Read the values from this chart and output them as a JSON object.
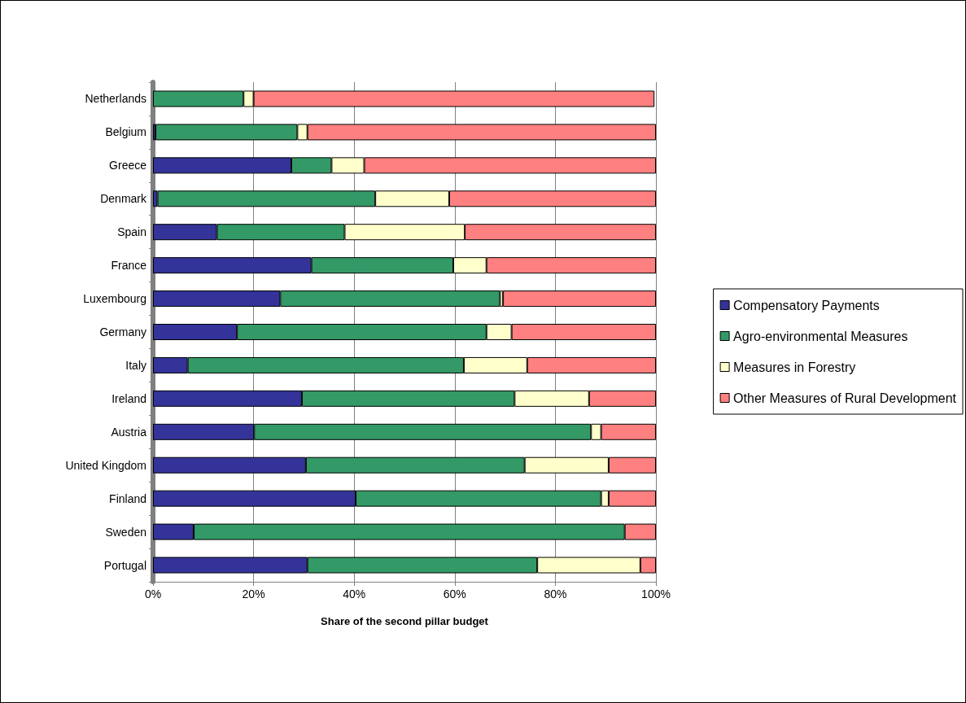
{
  "chart_data": {
    "type": "bar",
    "orientation": "horizontal",
    "stacked": true,
    "xlabel": "Share of the second pillar budget",
    "categories": [
      "Netherlands",
      "Belgium",
      "Greece",
      "Denmark",
      "Spain",
      "France",
      "Luxembourg",
      "Germany",
      "Italy",
      "Ireland",
      "Austria",
      "United Kingdom",
      "Finland",
      "Sweden",
      "Portugal"
    ],
    "series": [
      {
        "name": "Compensatory Payments",
        "color": "#333399",
        "values": [
          null,
          0.5,
          27.5,
          0.9,
          12.7,
          31.5,
          25.3,
          16.7,
          6.9,
          29.6,
          20.1,
          30.4,
          40.3,
          8.1,
          30.7
        ]
      },
      {
        "name": "Agro-environmental Measures",
        "color": "#339966",
        "values": [
          18.0,
          28.2,
          8.0,
          43.3,
          25.4,
          28.2,
          43.7,
          49.6,
          54.9,
          42.3,
          67.0,
          43.5,
          48.8,
          85.7,
          45.7
        ]
      },
      {
        "name": "Measures in Forestry",
        "color": "#ffffcc",
        "values": [
          2.0,
          2.0,
          6.5,
          14.7,
          23.9,
          6.6,
          0.6,
          5.0,
          12.6,
          14.8,
          2.0,
          16.7,
          1.5,
          null,
          20.5
        ]
      },
      {
        "name": "Other Measures of Rural Development",
        "color": "#ff8080",
        "values": [
          79.7,
          69.3,
          58.0,
          41.1,
          38.0,
          33.7,
          30.4,
          28.7,
          25.6,
          13.3,
          10.9,
          9.4,
          9.4,
          6.2,
          3.1
        ]
      }
    ],
    "xlim": [
      0,
      100
    ],
    "xticks": [
      {
        "value": 0,
        "label": "0%"
      },
      {
        "value": 20,
        "label": "20%"
      },
      {
        "value": 40,
        "label": "40%"
      },
      {
        "value": 60,
        "label": "60%"
      },
      {
        "value": 80,
        "label": "80%"
      },
      {
        "value": 100,
        "label": "100%"
      }
    ],
    "grid": "x",
    "legend": "right"
  }
}
